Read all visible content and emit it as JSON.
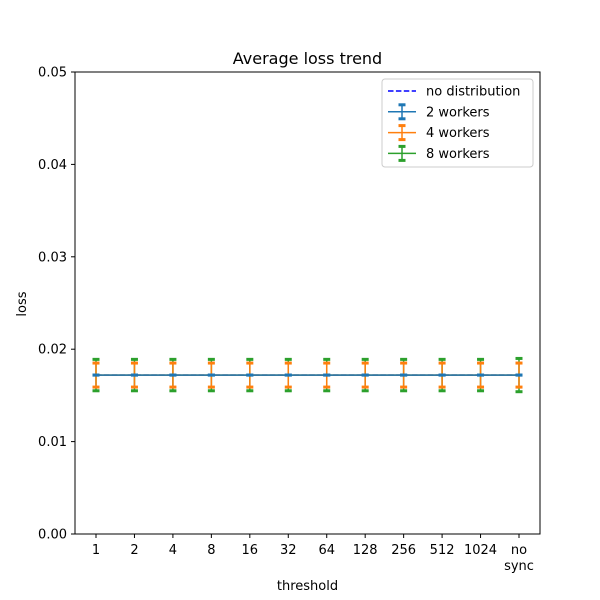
{
  "chart_data": {
    "type": "line",
    "title": "Average loss trend",
    "xlabel": "threshold",
    "ylabel": "loss",
    "categories": [
      "1",
      "2",
      "4",
      "8",
      "16",
      "32",
      "64",
      "128",
      "256",
      "512",
      "1024",
      "no\nsync"
    ],
    "ylim": [
      0,
      0.05
    ],
    "yticks": [
      "0.00",
      "0.01",
      "0.02",
      "0.03",
      "0.04",
      "0.05"
    ],
    "grid": false,
    "legend_position": "top-right",
    "series": [
      {
        "name": "no distribution",
        "style": "dashed",
        "color": "#0000ff",
        "values": [
          0.0172,
          0.0172,
          0.0172,
          0.0172,
          0.0172,
          0.0172,
          0.0172,
          0.0172,
          0.0172,
          0.0172,
          0.0172,
          0.0172
        ]
      },
      {
        "name": "2 workers",
        "color": "#1f77b4",
        "values": [
          0.0172,
          0.0172,
          0.0172,
          0.0172,
          0.0172,
          0.0172,
          0.0172,
          0.0172,
          0.0172,
          0.0172,
          0.0172,
          0.0172
        ],
        "error": [
          0.0,
          0.0,
          0.0,
          0.0,
          0.0,
          0.0,
          0.0,
          0.0,
          0.0,
          0.0,
          0.0,
          0.0
        ]
      },
      {
        "name": "4 workers",
        "color": "#ff7f0e",
        "values": [
          0.0172,
          0.0172,
          0.0172,
          0.0172,
          0.0172,
          0.0172,
          0.0172,
          0.0172,
          0.0172,
          0.0172,
          0.0172,
          0.0172
        ],
        "error": [
          0.0013,
          0.0013,
          0.0013,
          0.0013,
          0.0013,
          0.0013,
          0.0013,
          0.0013,
          0.0013,
          0.0013,
          0.0013,
          0.0013
        ]
      },
      {
        "name": "8 workers",
        "color": "#2ca02c",
        "values": [
          0.0172,
          0.0172,
          0.0172,
          0.0172,
          0.0172,
          0.0172,
          0.0172,
          0.0172,
          0.0172,
          0.0172,
          0.0172,
          0.0172
        ],
        "error": [
          0.0017,
          0.0017,
          0.0017,
          0.0017,
          0.0017,
          0.0017,
          0.0017,
          0.0017,
          0.0017,
          0.0017,
          0.0017,
          0.0018
        ]
      }
    ]
  }
}
